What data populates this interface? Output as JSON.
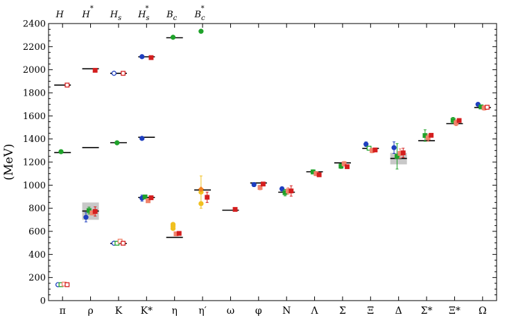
{
  "chart_data": {
    "type": "scatter",
    "title": "",
    "ylabel": "(MeV)",
    "xlabel": "",
    "ylim": [
      0,
      2400
    ],
    "yticks": [
      0,
      200,
      400,
      600,
      800,
      1000,
      1200,
      1400,
      1600,
      1800,
      2000,
      2200,
      2400
    ],
    "grid": false,
    "categories": [
      "π",
      "ρ",
      "K",
      "K*",
      "η",
      "η′",
      "ω",
      "φ",
      "N",
      "Λ",
      "Σ",
      "Ξ",
      "Δ",
      "Σ*",
      "Ξ*",
      "Ω"
    ],
    "top_labels": [
      {
        "base": "H",
        "sup": ""
      },
      {
        "base": "H",
        "sup": "*"
      },
      {
        "base": "H",
        "sub": "s"
      },
      {
        "base": "H",
        "sub": "s",
        "sup": "*"
      },
      {
        "base": "B",
        "sub": "c"
      },
      {
        "base": "B",
        "sub": "c",
        "sup": "*"
      }
    ],
    "colors": {
      "blue": "#1f3fbf",
      "green": "#1fa22a",
      "salmon": "#f0826a",
      "red": "#d41e1e",
      "gold": "#f0c020",
      "orange": "#f08020",
      "band": "#c8c8c8"
    },
    "experiment": [
      {
        "cat": 0,
        "y": 1282
      },
      {
        "cat": 0,
        "y": 1867
      },
      {
        "cat": 1,
        "y": 776
      },
      {
        "cat": 1,
        "y": 1325
      },
      {
        "cat": 1,
        "y": 2008
      },
      {
        "cat": 2,
        "y": 495
      },
      {
        "cat": 2,
        "y": 1368
      },
      {
        "cat": 2,
        "y": 1969
      },
      {
        "cat": 3,
        "y": 893
      },
      {
        "cat": 3,
        "y": 1415
      },
      {
        "cat": 3,
        "y": 2112
      },
      {
        "cat": 4,
        "y": 548
      },
      {
        "cat": 4,
        "y": 2277
      },
      {
        "cat": 5,
        "y": 958
      },
      {
        "cat": 6,
        "y": 783
      },
      {
        "cat": 7,
        "y": 1019
      },
      {
        "cat": 8,
        "y": 939
      },
      {
        "cat": 9,
        "y": 1116
      },
      {
        "cat": 10,
        "y": 1193
      },
      {
        "cat": 11,
        "y": 1318
      },
      {
        "cat": 12,
        "y": 1232
      },
      {
        "cat": 13,
        "y": 1385
      },
      {
        "cat": 14,
        "y": 1533
      },
      {
        "cat": 15,
        "y": 1672
      }
    ],
    "bands": [
      {
        "cat": 1,
        "y_low": 700,
        "y_high": 850
      },
      {
        "cat": 12,
        "y_low": 1180,
        "y_high": 1280
      }
    ],
    "series": [
      {
        "color": "blue",
        "shape": "circle",
        "offset": -3,
        "points": [
          {
            "cat": 0,
            "y": 138,
            "open": true
          },
          {
            "cat": 1,
            "y": 722,
            "err": 40
          },
          {
            "cat": 2,
            "y": 497,
            "open": true
          },
          {
            "cat": 2,
            "y": 1969,
            "open": true
          },
          {
            "cat": 3,
            "y": 888,
            "err": 26
          },
          {
            "cat": 3,
            "y": 1405
          },
          {
            "cat": 3,
            "y": 2113
          },
          {
            "cat": 6,
            "y": 0,
            "hidden": true
          },
          {
            "cat": 7,
            "y": 1005,
            "err": 18
          },
          {
            "cat": 8,
            "y": 968,
            "err": 18
          },
          {
            "cat": 11,
            "y": 1355,
            "err": 20
          },
          {
            "cat": 12,
            "y": 1325,
            "err": 50
          },
          {
            "cat": 15,
            "y": 1700
          }
        ]
      },
      {
        "color": "green",
        "shape": "circle",
        "offset": -1,
        "points": [
          {
            "cat": 0,
            "y": 1290
          },
          {
            "cat": 2,
            "y": 1367
          },
          {
            "cat": 4,
            "y": 2281
          },
          {
            "cat": 5,
            "y": 2333
          }
        ]
      },
      {
        "color": "green",
        "shape": "square",
        "offset": -1,
        "points": [
          {
            "cat": 0,
            "y": 138,
            "open": true
          },
          {
            "cat": 1,
            "y": 780,
            "err": 30
          },
          {
            "cat": 2,
            "y": 497,
            "open": true
          },
          {
            "cat": 3,
            "y": 898,
            "err": 15
          },
          {
            "cat": 8,
            "y": 935,
            "err": 28
          },
          {
            "cat": 9,
            "y": 1115,
            "err": 18
          },
          {
            "cat": 10,
            "y": 1165,
            "err": 20
          },
          {
            "cat": 11,
            "y": 1320,
            "open": true
          },
          {
            "cat": 12,
            "y": 1250,
            "err": 110
          },
          {
            "cat": 13,
            "y": 1430,
            "err": 50
          },
          {
            "cat": 14,
            "y": 1562,
            "err": 25
          },
          {
            "cat": 15,
            "y": 1678,
            "err": 15
          }
        ]
      },
      {
        "color": "salmon",
        "shape": "square",
        "offset": 1,
        "points": [
          {
            "cat": 0,
            "y": 143,
            "open": true
          },
          {
            "cat": 1,
            "y": 760,
            "err": 18
          },
          {
            "cat": 2,
            "y": 515,
            "open": true
          },
          {
            "cat": 3,
            "y": 865,
            "err": 15
          },
          {
            "cat": 4,
            "y": 578
          },
          {
            "cat": 7,
            "y": 980,
            "err": 20
          },
          {
            "cat": 8,
            "y": 950,
            "err": 28
          },
          {
            "cat": 9,
            "y": 1100,
            "err": 18
          },
          {
            "cat": 10,
            "y": 1185,
            "err": 20
          },
          {
            "cat": 11,
            "y": 1300,
            "err": 20
          },
          {
            "cat": 12,
            "y": 1275,
            "err": 40
          },
          {
            "cat": 13,
            "y": 1410,
            "err": 30
          },
          {
            "cat": 14,
            "y": 1540,
            "err": 25
          },
          {
            "cat": 15,
            "y": 1670,
            "err": 20
          }
        ]
      },
      {
        "color": "red",
        "shape": "square",
        "offset": 3,
        "points": [
          {
            "cat": 0,
            "y": 138,
            "open": true
          },
          {
            "cat": 0,
            "y": 1867,
            "open": true
          },
          {
            "cat": 1,
            "y": 772,
            "err": 40
          },
          {
            "cat": 1,
            "y": 1995
          },
          {
            "cat": 2,
            "y": 497,
            "open": true
          },
          {
            "cat": 2,
            "y": 1969,
            "open": true
          },
          {
            "cat": 3,
            "y": 891,
            "err": 15
          },
          {
            "cat": 3,
            "y": 2105
          },
          {
            "cat": 4,
            "y": 582
          },
          {
            "cat": 5,
            "y": 895,
            "err": 45
          },
          {
            "cat": 6,
            "y": 790
          },
          {
            "cat": 7,
            "y": 1010
          },
          {
            "cat": 8,
            "y": 950,
            "err": 45
          },
          {
            "cat": 9,
            "y": 1090
          },
          {
            "cat": 10,
            "y": 1160
          },
          {
            "cat": 11,
            "y": 1305
          },
          {
            "cat": 12,
            "y": 1280,
            "err": 40
          },
          {
            "cat": 13,
            "y": 1432
          },
          {
            "cat": 14,
            "y": 1560
          },
          {
            "cat": 15,
            "y": 1675,
            "open": true
          }
        ]
      },
      {
        "color": "gold",
        "shape": "circle",
        "offset": -1,
        "points": [
          {
            "cat": 4,
            "y": 645
          },
          {
            "cat": 4,
            "y": 660
          },
          {
            "cat": 4,
            "y": 625
          },
          {
            "cat": 5,
            "y": 940,
            "err": 140
          },
          {
            "cat": 5,
            "y": 840
          }
        ]
      },
      {
        "color": "orange",
        "shape": "diamond",
        "offset": -1,
        "points": [
          {
            "cat": 5,
            "y": 965
          }
        ]
      }
    ]
  }
}
